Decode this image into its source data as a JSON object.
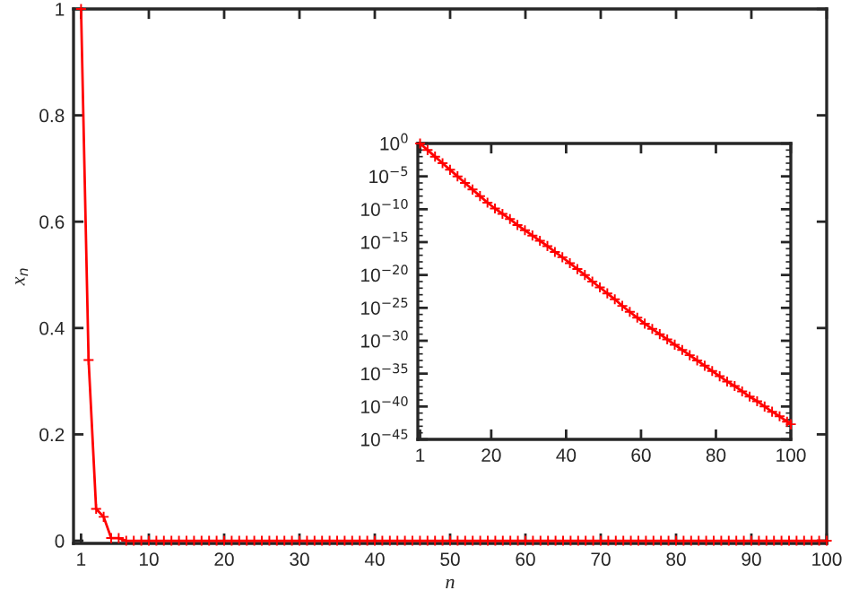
{
  "chart_data": [
    {
      "type": "line",
      "xlabel": "n",
      "ylabel": "x$_{n}$",
      "marker": "cross",
      "line_style": "solid",
      "xlim": [
        0,
        100
      ],
      "ylim": [
        -0.005,
        1
      ],
      "xticks": [
        1,
        10,
        20,
        30,
        40,
        50,
        60,
        70,
        80,
        90,
        100
      ],
      "yticks": [
        0,
        0.2,
        0.4,
        0.6,
        0.8,
        1
      ],
      "x": [
        1,
        2,
        3,
        4,
        5,
        6,
        7,
        8,
        9,
        10,
        11,
        12,
        13,
        14,
        15,
        16,
        17,
        18,
        19,
        20,
        21,
        22,
        23,
        24,
        25,
        26,
        27,
        28,
        29,
        30,
        31,
        32,
        33,
        34,
        35,
        36,
        37,
        38,
        39,
        40,
        41,
        42,
        43,
        44,
        45,
        46,
        47,
        48,
        49,
        50,
        51,
        52,
        53,
        54,
        55,
        56,
        57,
        58,
        59,
        60,
        61,
        62,
        63,
        64,
        65,
        66,
        67,
        68,
        69,
        70,
        71,
        72,
        73,
        74,
        75,
        76,
        77,
        78,
        79,
        80,
        81,
        82,
        83,
        84,
        85,
        86,
        87,
        88,
        89,
        90,
        91,
        92,
        93,
        94,
        95,
        96,
        97,
        98,
        99,
        100
      ],
      "series": [
        {
          "color": "#ff0000",
          "values": [
            1,
            0.34,
            0.06,
            0.045,
            0.005,
            0.005,
            0,
            0,
            0,
            0,
            0,
            0,
            0,
            0,
            0,
            0,
            0,
            0,
            0,
            0,
            0,
            0,
            0,
            0,
            0,
            0,
            0,
            0,
            0,
            0,
            0,
            0,
            0,
            0,
            0,
            0,
            0,
            0,
            0,
            0,
            0,
            0,
            0,
            0,
            0,
            0,
            0,
            0,
            0,
            0,
            0,
            0,
            0,
            0,
            0,
            0,
            0,
            0,
            0,
            0,
            0,
            0,
            0,
            0,
            0,
            0,
            0,
            0,
            0,
            0,
            0,
            0,
            0,
            0,
            0,
            0,
            0,
            0,
            0,
            0,
            0,
            0,
            0,
            0,
            0,
            0,
            0,
            0,
            0,
            0,
            0,
            0,
            0,
            0,
            0,
            0,
            0,
            0,
            0,
            0
          ]
        }
      ]
    },
    {
      "type": "line",
      "log": true,
      "marker": "cross",
      "line_style": "solid",
      "xlim": [
        0.4,
        100
      ],
      "ylim": [
        1e-45,
        1
      ],
      "xticks": [
        1,
        20,
        40,
        60,
        80,
        100
      ],
      "yticks": [
        {
          "value": 1,
          "label": "10$^{0}$"
        },
        {
          "value": 1e-05,
          "label": "10$^{−5}$"
        },
        {
          "value": 1e-10,
          "label": "10$^{−10}$"
        },
        {
          "value": 1e-15,
          "label": "10$^{−15}$"
        },
        {
          "value": 1e-20,
          "label": "10$^{−20}$"
        },
        {
          "value": 1e-25,
          "label": "10$^{−25}$"
        },
        {
          "value": 1e-30,
          "label": "10$^{−30}$"
        },
        {
          "value": 1e-35,
          "label": "10$^{−35}$"
        },
        {
          "value": 1e-40,
          "label": "10$^{−40}$"
        },
        {
          "value": 1e-45,
          "label": "10$^{−45}$"
        }
      ],
      "x": [
        1,
        3,
        5,
        7,
        9,
        11,
        13,
        15,
        17,
        19,
        21,
        23,
        25,
        27,
        29,
        31,
        33,
        35,
        37,
        39,
        41,
        43,
        45,
        47,
        49,
        51,
        53,
        55,
        57,
        59,
        61,
        63,
        65,
        67,
        69,
        71,
        73,
        75,
        77,
        79,
        81,
        83,
        85,
        87,
        89,
        91,
        93,
        95,
        97,
        99,
        100
      ],
      "series": [
        {
          "color": "#ff0000",
          "values": [
            1,
            0.1,
            0.01,
            0.001,
            0.0001,
            1e-05,
            1e-06,
            1e-07,
            1e-08,
            1e-09,
            1.3e-10,
            2e-11,
            3.2e-12,
            4e-13,
            6.3e-14,
            1e-14,
            1.6e-15,
            2.5e-16,
            3.2e-17,
            5e-18,
            6.3e-19,
            7.9e-20,
            1e-20,
            1e-21,
            1.3e-22,
            1.6e-23,
            2e-24,
            2e-25,
            2.5e-26,
            3.2e-27,
            4e-28,
            6.3e-29,
            1e-29,
            1.6e-30,
            2.5e-31,
            4e-32,
            6.3e-33,
            1e-33,
            1.6e-34,
            2.5e-35,
            4e-36,
            6.3e-37,
            1.3e-37,
            2e-38,
            3.2e-39,
            6.3e-40,
            1e-40,
            1.6e-41,
            3.2e-42,
            5e-43,
            2e-43
          ]
        }
      ]
    }
  ]
}
